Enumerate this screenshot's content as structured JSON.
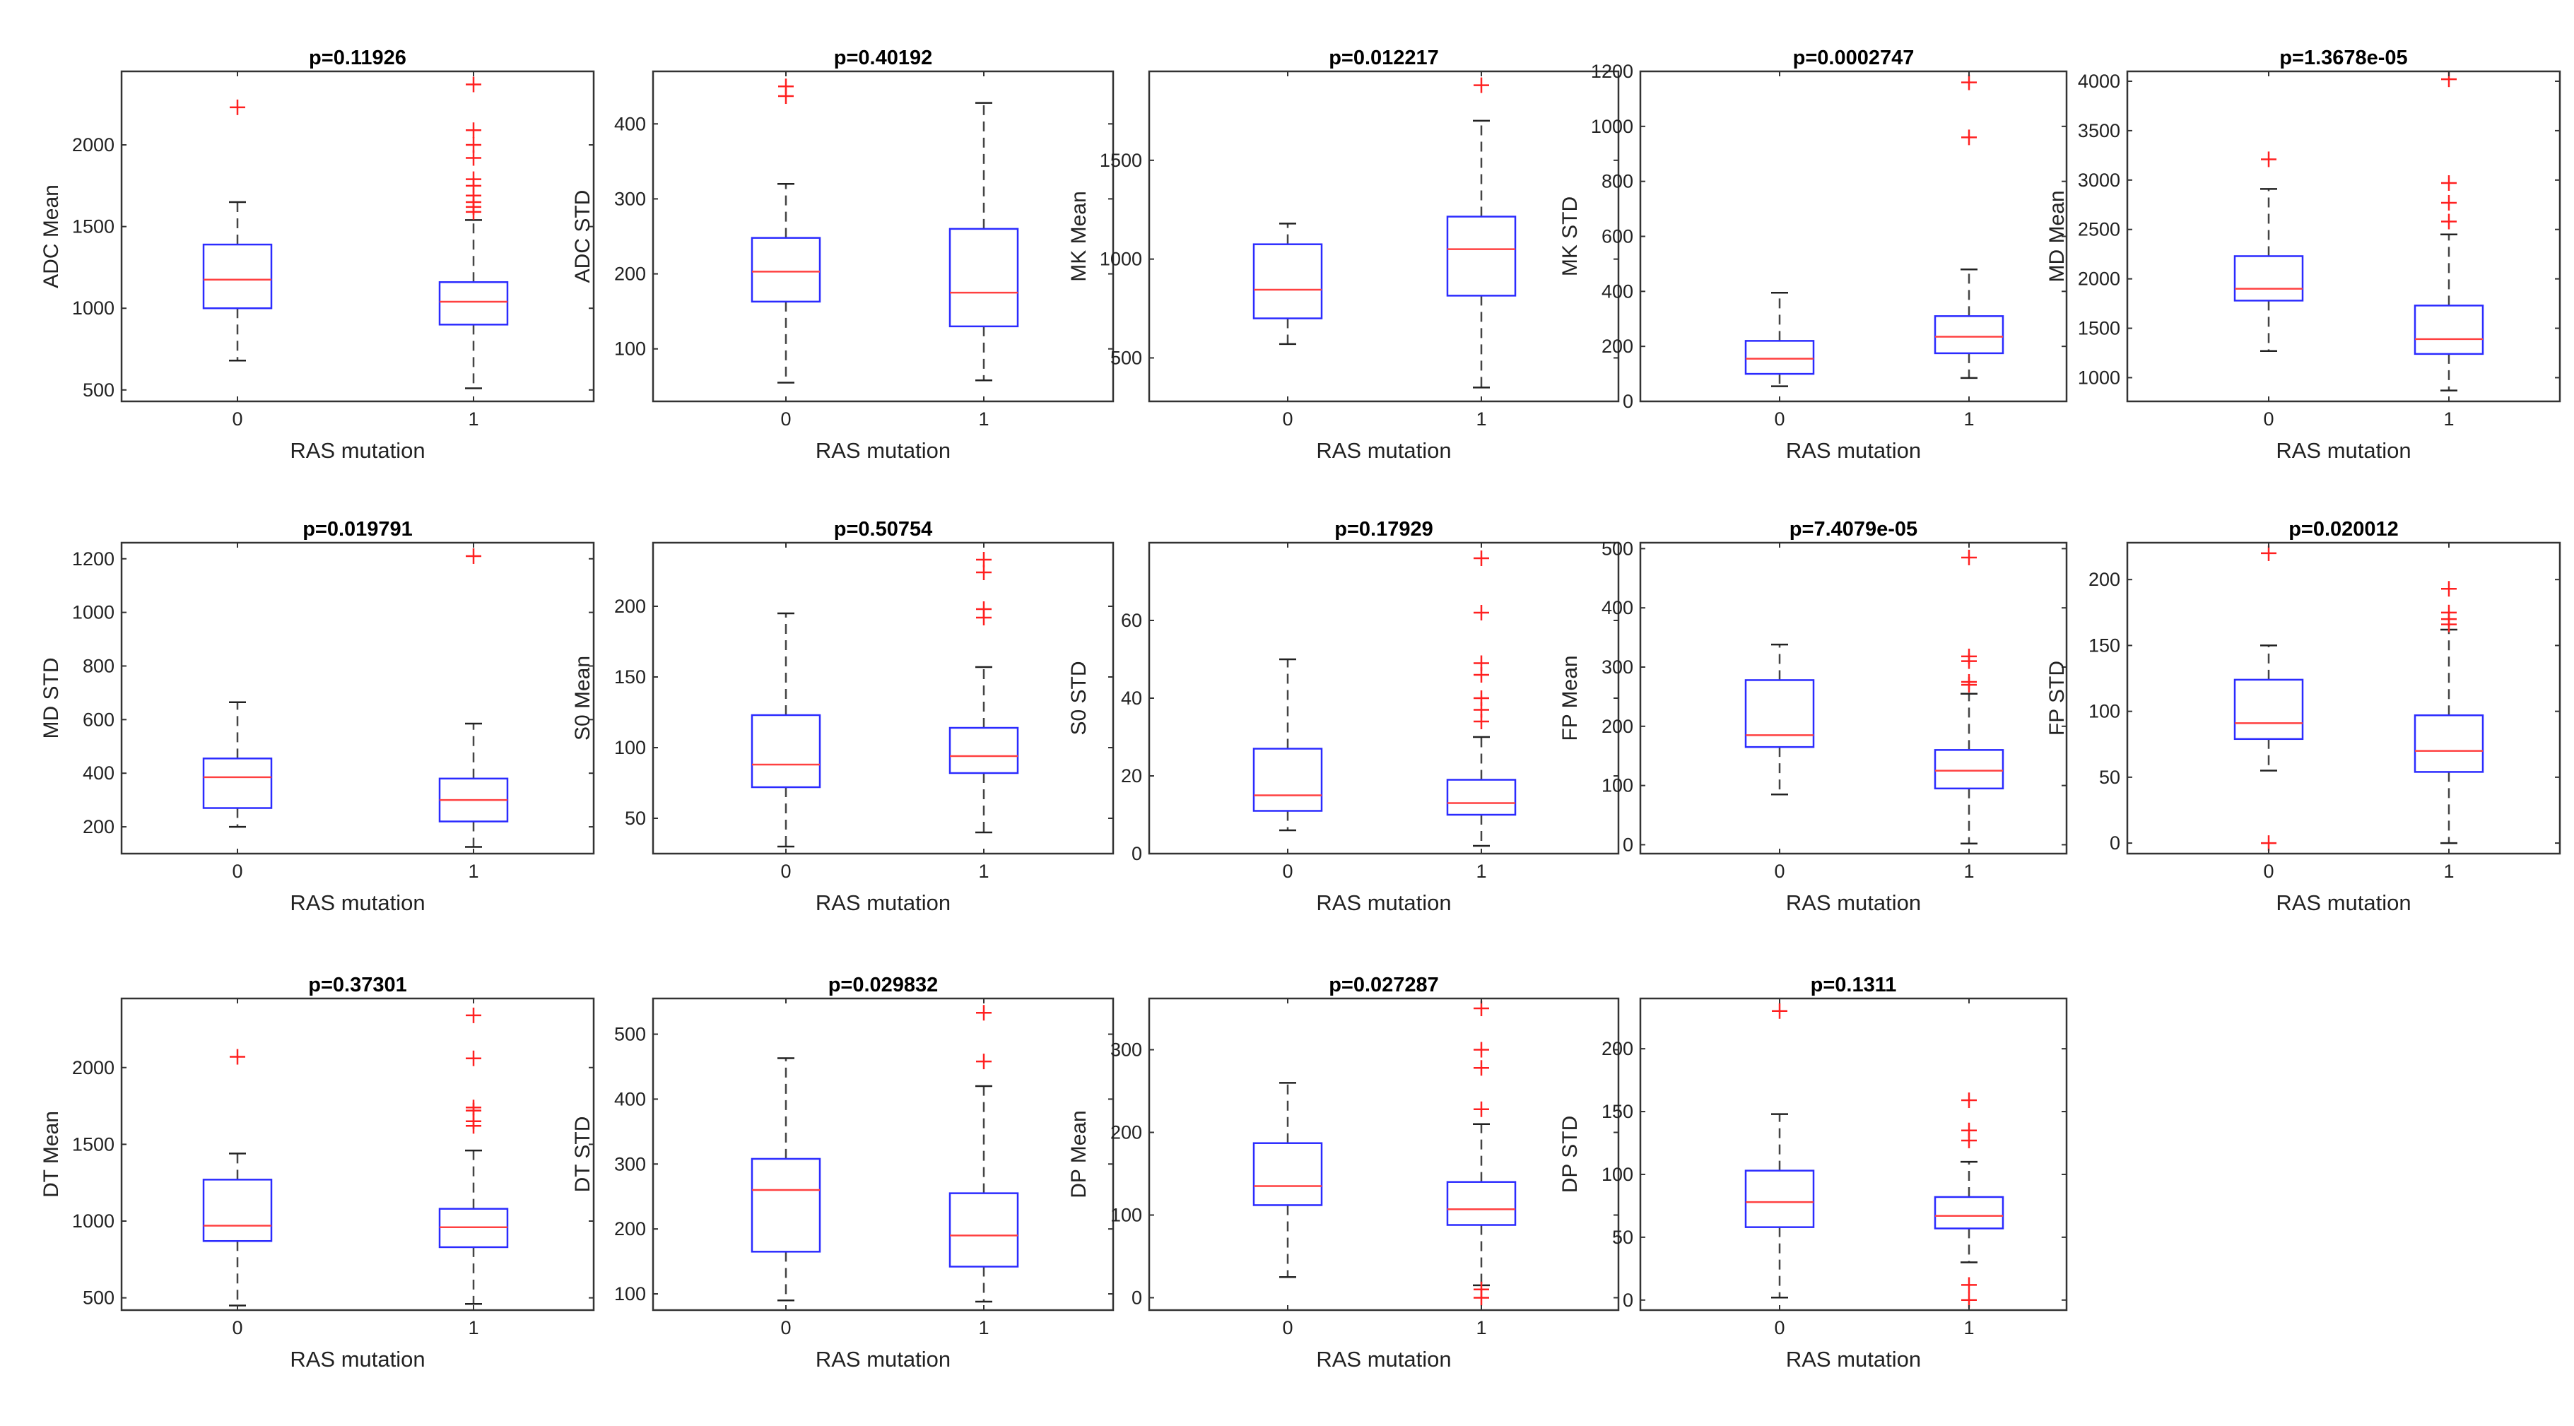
{
  "chart_data": [
    {
      "type": "box",
      "title": "p=0.11926",
      "xlabel": "RAS mutation",
      "ylabel": "ADC Mean",
      "categories": [
        "0",
        "1"
      ],
      "ylim": [
        430,
        2450
      ],
      "yticks": [
        500,
        1000,
        1500,
        2000
      ],
      "boxes": [
        {
          "min": 680,
          "q1": 1000,
          "median": 1175,
          "q3": 1390,
          "max": 1650,
          "outliers": [
            2230
          ]
        },
        {
          "min": 510,
          "q1": 900,
          "median": 1040,
          "q3": 1160,
          "max": 1540,
          "outliers": [
            1590,
            1620,
            1650,
            1690,
            1750,
            1790,
            1920,
            2000,
            2090,
            2370
          ]
        }
      ]
    },
    {
      "type": "box",
      "title": "p=0.40192",
      "xlabel": "RAS mutation",
      "ylabel": "ADC  STD",
      "categories": [
        "0",
        "1"
      ],
      "ylim": [
        30,
        470
      ],
      "yticks": [
        100,
        200,
        300,
        400
      ],
      "boxes": [
        {
          "min": 55,
          "q1": 163,
          "median": 203,
          "q3": 248,
          "max": 320,
          "outliers": [
            437,
            450
          ]
        },
        {
          "min": 58,
          "q1": 130,
          "median": 175,
          "q3": 260,
          "max": 428,
          "outliers": []
        }
      ]
    },
    {
      "type": "box",
      "title": "p=0.012217",
      "xlabel": "RAS mutation",
      "ylabel": "MK Mean",
      "categories": [
        "0",
        "1"
      ],
      "ylim": [
        280,
        1950
      ],
      "yticks": [
        500,
        1000,
        1500
      ],
      "boxes": [
        {
          "min": 570,
          "q1": 700,
          "median": 845,
          "q3": 1075,
          "max": 1180,
          "outliers": []
        },
        {
          "min": 350,
          "q1": 815,
          "median": 1050,
          "q3": 1215,
          "max": 1700,
          "outliers": [
            1880
          ]
        }
      ]
    },
    {
      "type": "box",
      "title": "p=0.0002747",
      "xlabel": "RAS mutation",
      "ylabel": "MK STD",
      "categories": [
        "0",
        "1"
      ],
      "ylim": [
        0,
        1200
      ],
      "yticks": [
        0,
        200,
        400,
        600,
        800,
        1000,
        1200
      ],
      "boxes": [
        {
          "min": 55,
          "q1": 100,
          "median": 155,
          "q3": 220,
          "max": 395,
          "outliers": []
        },
        {
          "min": 85,
          "q1": 175,
          "median": 235,
          "q3": 310,
          "max": 480,
          "outliers": [
            960,
            1160
          ]
        }
      ]
    },
    {
      "type": "box",
      "title": "p=1.3678e-05",
      "xlabel": "RAS mutation",
      "ylabel": "MD Mean",
      "categories": [
        "0",
        "1"
      ],
      "ylim": [
        760,
        4100
      ],
      "yticks": [
        1000,
        1500,
        2000,
        2500,
        3000,
        3500,
        4000
      ],
      "boxes": [
        {
          "min": 1270,
          "q1": 1780,
          "median": 1900,
          "q3": 2230,
          "max": 2910,
          "outliers": [
            3210
          ]
        },
        {
          "min": 870,
          "q1": 1240,
          "median": 1390,
          "q3": 1730,
          "max": 2450,
          "outliers": [
            2580,
            2770,
            2970,
            4020
          ]
        }
      ]
    },
    {
      "type": "box",
      "title": "p=0.019791",
      "xlabel": "RAS mutation",
      "ylabel": "MD STD",
      "categories": [
        "0",
        "1"
      ],
      "ylim": [
        100,
        1260
      ],
      "yticks": [
        200,
        400,
        600,
        800,
        1000,
        1200
      ],
      "boxes": [
        {
          "min": 200,
          "q1": 270,
          "median": 385,
          "q3": 455,
          "max": 665,
          "outliers": []
        },
        {
          "min": 125,
          "q1": 220,
          "median": 300,
          "q3": 380,
          "max": 585,
          "outliers": [
            1210
          ]
        }
      ]
    },
    {
      "type": "box",
      "title": "p=0.50754",
      "xlabel": "RAS mutation",
      "ylabel": "S0 Mean",
      "categories": [
        "0",
        "1"
      ],
      "ylim": [
        25,
        245
      ],
      "yticks": [
        50,
        100,
        150,
        200
      ],
      "boxes": [
        {
          "min": 30,
          "q1": 72,
          "median": 88,
          "q3": 123,
          "max": 195,
          "outliers": []
        },
        {
          "min": 40,
          "q1": 82,
          "median": 94,
          "q3": 114,
          "max": 157,
          "outliers": [
            192,
            198,
            224,
            233
          ]
        }
      ]
    },
    {
      "type": "box",
      "title": "p=0.17929",
      "xlabel": "RAS mutation",
      "ylabel": "S0 STD",
      "categories": [
        "0",
        "1"
      ],
      "ylim": [
        0,
        80
      ],
      "yticks": [
        0,
        20,
        40,
        60
      ],
      "boxes": [
        {
          "min": 6,
          "q1": 11,
          "median": 15,
          "q3": 27,
          "max": 50,
          "outliers": []
        },
        {
          "min": 2,
          "q1": 10,
          "median": 13,
          "q3": 19,
          "max": 30,
          "outliers": [
            34,
            37,
            40,
            46,
            49,
            62,
            76
          ]
        }
      ]
    },
    {
      "type": "box",
      "title": "p=7.4079e-05",
      "xlabel": "RAS mutation",
      "ylabel": "FP Mean",
      "categories": [
        "0",
        "1"
      ],
      "ylim": [
        -15,
        510
      ],
      "yticks": [
        0,
        100,
        200,
        300,
        400,
        500
      ],
      "boxes": [
        {
          "min": 85,
          "q1": 165,
          "median": 185,
          "q3": 278,
          "max": 338,
          "outliers": []
        },
        {
          "min": 2,
          "q1": 95,
          "median": 125,
          "q3": 160,
          "max": 255,
          "outliers": [
            270,
            275,
            310,
            318,
            485
          ]
        }
      ]
    },
    {
      "type": "box",
      "title": "p=0.020012",
      "xlabel": "RAS mutation",
      "ylabel": "FP STD",
      "categories": [
        "0",
        "1"
      ],
      "ylim": [
        -8,
        228
      ],
      "yticks": [
        0,
        50,
        100,
        150,
        200
      ],
      "boxes": [
        {
          "min": 55,
          "q1": 79,
          "median": 91,
          "q3": 124,
          "max": 150,
          "outliers": [
            0,
            220
          ]
        },
        {
          "min": 0,
          "q1": 54,
          "median": 70,
          "q3": 97,
          "max": 162,
          "outliers": [
            166,
            170,
            175,
            193
          ]
        }
      ]
    },
    {
      "type": "box",
      "title": "p=0.37301",
      "xlabel": "RAS mutation",
      "ylabel": "DT Mean",
      "categories": [
        "0",
        "1"
      ],
      "ylim": [
        420,
        2450
      ],
      "yticks": [
        500,
        1000,
        1500,
        2000
      ],
      "boxes": [
        {
          "min": 450,
          "q1": 870,
          "median": 970,
          "q3": 1270,
          "max": 1440,
          "outliers": [
            2070
          ]
        },
        {
          "min": 460,
          "q1": 830,
          "median": 960,
          "q3": 1080,
          "max": 1460,
          "outliers": [
            1620,
            1650,
            1720,
            1740,
            2060,
            2340
          ]
        }
      ]
    },
    {
      "type": "box",
      "title": "p=0.029832",
      "xlabel": "RAS mutation",
      "ylabel": "DT STD",
      "categories": [
        "0",
        "1"
      ],
      "ylim": [
        75,
        555
      ],
      "yticks": [
        100,
        200,
        300,
        400,
        500
      ],
      "boxes": [
        {
          "min": 90,
          "q1": 165,
          "median": 260,
          "q3": 308,
          "max": 463,
          "outliers": []
        },
        {
          "min": 88,
          "q1": 142,
          "median": 190,
          "q3": 255,
          "max": 420,
          "outliers": [
            458,
            533
          ]
        }
      ]
    },
    {
      "type": "box",
      "title": "p=0.027287",
      "xlabel": "RAS mutation",
      "ylabel": "DP Mean",
      "categories": [
        "0",
        "1"
      ],
      "ylim": [
        -15,
        362
      ],
      "yticks": [
        0,
        100,
        200,
        300
      ],
      "boxes": [
        {
          "min": 25,
          "q1": 112,
          "median": 135,
          "q3": 187,
          "max": 260,
          "outliers": []
        },
        {
          "min": 15,
          "q1": 88,
          "median": 107,
          "q3": 140,
          "max": 210,
          "outliers": [
            0,
            10,
            228,
            278,
            300,
            350
          ]
        }
      ]
    },
    {
      "type": "box",
      "title": "p=0.1311",
      "xlabel": "RAS mutation",
      "ylabel": "DP STD",
      "categories": [
        "0",
        "1"
      ],
      "ylim": [
        -8,
        240
      ],
      "yticks": [
        0,
        50,
        100,
        150,
        200
      ],
      "boxes": [
        {
          "min": 2,
          "q1": 58,
          "median": 78,
          "q3": 103,
          "max": 148,
          "outliers": [
            230
          ]
        },
        {
          "min": 30,
          "q1": 57,
          "median": 67,
          "q3": 82,
          "max": 110,
          "outliers": [
            0,
            12,
            127,
            135,
            159
          ]
        }
      ]
    }
  ]
}
